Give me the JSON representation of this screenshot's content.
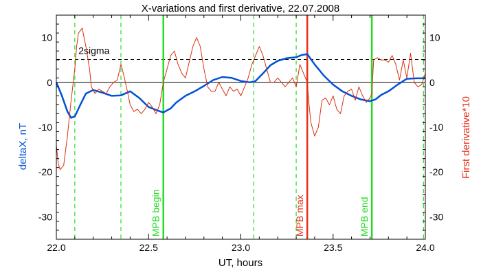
{
  "chart_data": {
    "type": "line",
    "title": "X-variations and first derivative, 22.07.2008",
    "xlabel": "UT, hours",
    "ylabel_left": "deltaX, nT",
    "ylabel_right": "First derivative*10",
    "xlim": [
      22.0,
      24.0
    ],
    "ylim": [
      -35,
      15
    ],
    "x_ticks": [
      22.0,
      22.5,
      23.0,
      23.5,
      24.0
    ],
    "x_tick_labels": [
      "22.0",
      "22.5",
      "23.0",
      "23.5",
      "24.0"
    ],
    "y_ticks": [
      10,
      0,
      -10,
      -20,
      -30
    ],
    "y_tick_labels": [
      "10",
      "0",
      "-10",
      "-20",
      "-30"
    ],
    "colors": {
      "deltaX": "#0050d8",
      "derivative": "#d8300c",
      "green_line": "#22dd22",
      "max_line": "#e8301a",
      "axis": "#000000",
      "ylabel_left": "#0050d8",
      "ylabel_right": "#e8301a"
    },
    "threshold": {
      "label": "2sigma",
      "value": 5.1
    },
    "zero_line": 0,
    "vertical_markers": [
      {
        "x": 22.58,
        "label": "MPB begin",
        "color": "#22dd22"
      },
      {
        "x": 23.36,
        "label": "MPB max",
        "color": "#e8301a"
      },
      {
        "x": 23.71,
        "label": "MPB end",
        "color": "#22dd22"
      }
    ],
    "dashed_verticals": [
      22.1,
      22.35,
      23.07,
      23.3,
      23.99
    ],
    "series": [
      {
        "key": "deltaX",
        "color": "#0050d8",
        "x": [
          22.0,
          22.03,
          22.06,
          22.08,
          22.1,
          22.13,
          22.16,
          22.2,
          22.25,
          22.3,
          22.35,
          22.4,
          22.45,
          22.5,
          22.55,
          22.58,
          22.62,
          22.65,
          22.7,
          22.75,
          22.8,
          22.85,
          22.9,
          22.95,
          23.0,
          23.05,
          23.08,
          23.12,
          23.16,
          23.2,
          23.25,
          23.3,
          23.33,
          23.36,
          23.4,
          23.45,
          23.5,
          23.55,
          23.6,
          23.65,
          23.7,
          23.73,
          23.76,
          23.8,
          23.85,
          23.9,
          23.95,
          24.0
        ],
        "y": [
          0,
          -3,
          -6.5,
          -7.9,
          -7.6,
          -5,
          -2.5,
          -1.7,
          -2.3,
          -3,
          -2.9,
          -2,
          -3.5,
          -5.5,
          -6.3,
          -6.7,
          -5.8,
          -4.5,
          -3,
          -2,
          -0.8,
          0.5,
          1.2,
          1,
          0.3,
          0,
          0.3,
          2,
          3.8,
          4.8,
          5.4,
          5.6,
          6.1,
          6.3,
          4,
          1.5,
          -0.5,
          -2,
          -3,
          -3.8,
          -4.2,
          -3.8,
          -2.8,
          -2,
          -0.5,
          0.8,
          0.9,
          0.9
        ]
      },
      {
        "key": "derivative",
        "color": "#d8300c",
        "x": [
          22.0,
          22.01,
          22.02,
          22.04,
          22.06,
          22.08,
          22.1,
          22.11,
          22.12,
          22.14,
          22.16,
          22.18,
          22.19,
          22.21,
          22.23,
          22.25,
          22.27,
          22.29,
          22.31,
          22.33,
          22.35,
          22.36,
          22.38,
          22.4,
          22.42,
          22.44,
          22.46,
          22.48,
          22.5,
          22.52,
          22.54,
          22.56,
          22.58,
          22.6,
          22.62,
          22.64,
          22.66,
          22.68,
          22.7,
          22.72,
          22.74,
          22.76,
          22.78,
          22.8,
          22.82,
          22.84,
          22.86,
          22.88,
          22.9,
          22.92,
          22.94,
          22.96,
          22.98,
          23.0,
          23.02,
          23.04,
          23.06,
          23.08,
          23.1,
          23.12,
          23.14,
          23.16,
          23.18,
          23.2,
          23.22,
          23.24,
          23.26,
          23.28,
          23.3,
          23.32,
          23.34,
          23.36,
          23.37,
          23.38,
          23.4,
          23.42,
          23.44,
          23.46,
          23.48,
          23.5,
          23.52,
          23.54,
          23.56,
          23.58,
          23.6,
          23.62,
          23.64,
          23.66,
          23.68,
          23.7,
          23.71,
          23.72,
          23.74,
          23.76,
          23.78,
          23.8,
          23.82,
          23.84,
          23.86,
          23.88,
          23.9,
          23.92,
          23.94,
          23.96,
          23.98,
          24.0
        ],
        "y": [
          -14,
          -18,
          -19.5,
          -18.5,
          -12,
          -4,
          3,
          8,
          11,
          12.1,
          8,
          3,
          -1,
          -2.5,
          -1.5,
          -2,
          -2.5,
          -1,
          0,
          0.5,
          4,
          2.5,
          -1,
          -5,
          -6.5,
          -6,
          -7,
          -6,
          -4.5,
          -5.5,
          -7,
          -5,
          0,
          3,
          6,
          7,
          4,
          2,
          1,
          4.5,
          8,
          10,
          8,
          3,
          -1,
          -2,
          -2,
          0,
          -1.5,
          -3,
          -1,
          -2,
          -1.5,
          -3,
          -1,
          1,
          4,
          6,
          8,
          6,
          3,
          0,
          0,
          1,
          0,
          -1,
          0,
          1,
          -1,
          4,
          2,
          0,
          -5,
          -9,
          -12,
          -10,
          -4,
          -3.5,
          -5,
          -3,
          -6,
          -7,
          -3,
          -2,
          -1.5,
          -4,
          -1,
          -3,
          -4.5,
          -3.5,
          -2.5,
          5,
          5.5,
          5,
          5,
          4.5,
          6,
          4,
          0.5,
          5,
          1,
          6.5,
          0,
          -1,
          -0.5,
          2
        ]
      }
    ]
  }
}
